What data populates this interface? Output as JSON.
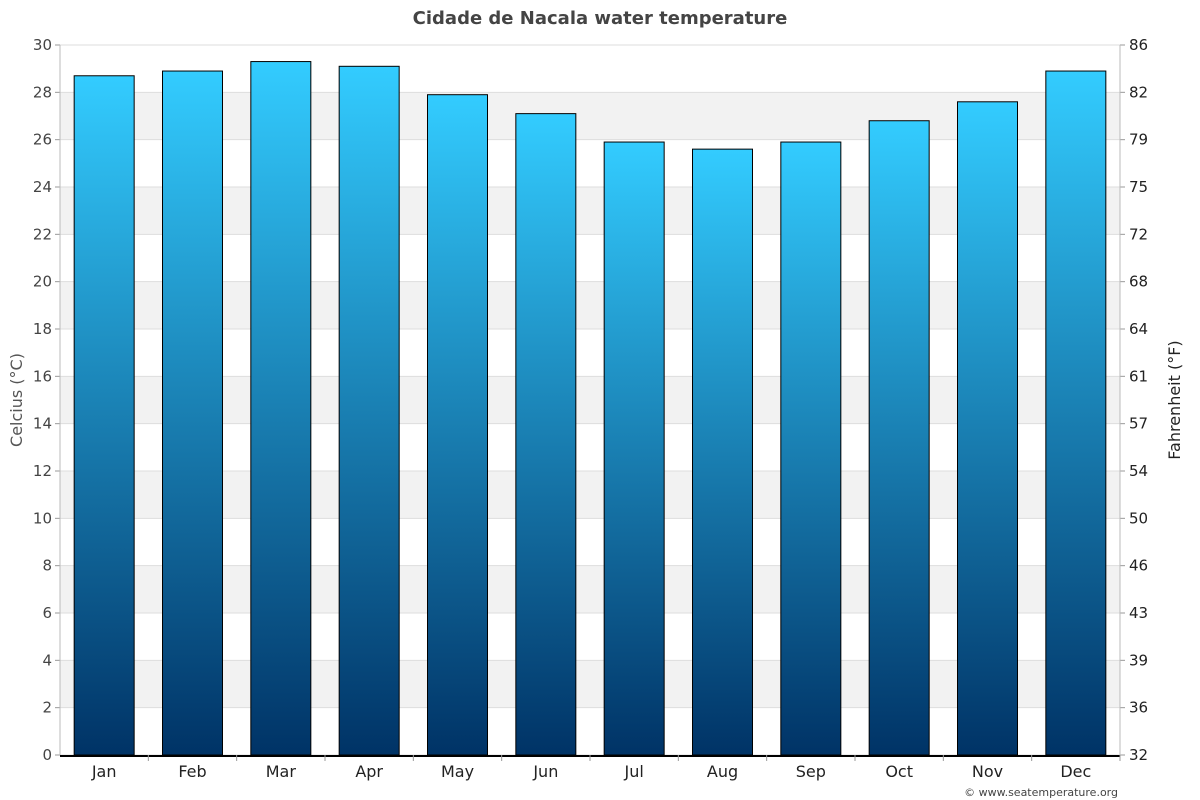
{
  "chart_data": {
    "type": "bar",
    "title": "Cidade de Nacala water temperature",
    "categories": [
      "Jan",
      "Feb",
      "Mar",
      "Apr",
      "May",
      "Jun",
      "Jul",
      "Aug",
      "Sep",
      "Oct",
      "Nov",
      "Dec"
    ],
    "values": [
      28.7,
      28.9,
      29.3,
      29.1,
      27.9,
      27.1,
      25.9,
      25.6,
      25.9,
      26.8,
      27.6,
      28.9
    ],
    "ylabel": "Celcius (°C)",
    "y2label": "Fahrenheit (°F)",
    "ylim": [
      0,
      30
    ],
    "yticks": [
      "0",
      "2",
      "4",
      "6",
      "8",
      "10",
      "12",
      "14",
      "16",
      "18",
      "20",
      "22",
      "24",
      "26",
      "28",
      "30"
    ],
    "y2ticks": [
      "32",
      "36",
      "39",
      "43",
      "46",
      "50",
      "54",
      "57",
      "61",
      "64",
      "68",
      "72",
      "75",
      "79",
      "82",
      "86"
    ],
    "grid": true,
    "colors": {
      "bar_top": "#33ccff",
      "bar_bottom": "#003366",
      "band": "#f2f2f2"
    }
  },
  "footer": "© www.seatemperature.org"
}
